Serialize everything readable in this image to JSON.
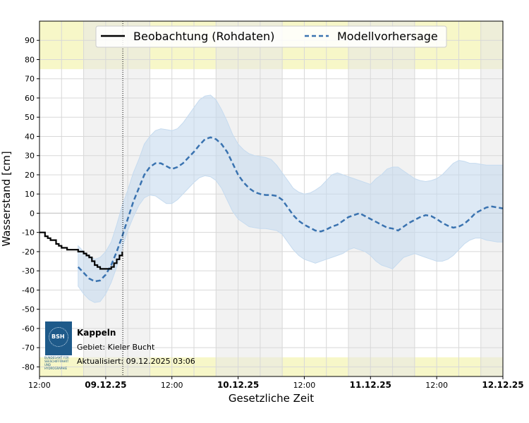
{
  "chart_data": {
    "type": "line",
    "xlabel": "Gesetzliche Zeit",
    "ylabel": "Wasserstand [cm]",
    "x_unit": "hours since 08.12.2025 12:00",
    "xlim": [
      0,
      84
    ],
    "ylim": [
      -85,
      100
    ],
    "y_ticks": [
      90,
      80,
      70,
      60,
      50,
      40,
      30,
      20,
      10,
      0,
      -10,
      -20,
      -30,
      -40,
      -50,
      -60,
      -70,
      -80
    ],
    "x_ticks": [
      {
        "x": 0,
        "label": "12:00",
        "bold": false
      },
      {
        "x": 12,
        "label": "09.12.25",
        "bold": true
      },
      {
        "x": 24,
        "label": "12:00",
        "bold": false
      },
      {
        "x": 36,
        "label": "10.12.25",
        "bold": true
      },
      {
        "x": 48,
        "label": "12:00",
        "bold": false
      },
      {
        "x": 60,
        "label": "11.12.25",
        "bold": true
      },
      {
        "x": 72,
        "label": "12:00",
        "bold": false
      },
      {
        "x": 84,
        "label": "12.12.25",
        "bold": true
      }
    ],
    "now_x": 15.1,
    "night_bands": [
      [
        8,
        20
      ],
      [
        32,
        44
      ],
      [
        56,
        68
      ],
      [
        80,
        84
      ]
    ],
    "warning_bands": [
      [
        75,
        100
      ],
      [
        -85,
        -75
      ]
    ],
    "legend": [
      {
        "label": "Beobachtung (Rohdaten)",
        "style": "solid",
        "color": "#000000"
      },
      {
        "label": "Modellvorhersage",
        "style": "dashed",
        "color": "#3a73b0"
      }
    ],
    "series": [
      {
        "name": "Beobachtung (Rohdaten)",
        "x": [
          0,
          0.5,
          1,
          1.5,
          2,
          2.5,
          3,
          3.5,
          4,
          4.5,
          5,
          5.5,
          6,
          6.5,
          7,
          7.5,
          8,
          8.5,
          9,
          9.5,
          10,
          10.5,
          11,
          11.5,
          12,
          12.5,
          13,
          13.5,
          14,
          14.5,
          15
        ],
        "values": [
          -10,
          -10,
          -12,
          -13,
          -14,
          -14,
          -16,
          -17,
          -18,
          -18,
          -19,
          -19,
          -19,
          -19,
          -20,
          -20,
          -21,
          -22,
          -23,
          -25,
          -27,
          -28,
          -29,
          -29,
          -29,
          -29,
          -28,
          -26,
          -24,
          -22,
          -20
        ]
      },
      {
        "name": "Modellvorhersage",
        "x": [
          7,
          8,
          9,
          10,
          11,
          12,
          13,
          14,
          15,
          16,
          17,
          18,
          19,
          20,
          21,
          22,
          23,
          24,
          25,
          26,
          27,
          28,
          29,
          30,
          31,
          32,
          33,
          34,
          35,
          36,
          37,
          38,
          39,
          40,
          41,
          42,
          43,
          44,
          45,
          46,
          47,
          48,
          49,
          50,
          51,
          52,
          53,
          54,
          55,
          56,
          57,
          58,
          59,
          60,
          61,
          62,
          63,
          64,
          65,
          66,
          67,
          68,
          69,
          70,
          71,
          72,
          73,
          74,
          75,
          76,
          77,
          78,
          79,
          80,
          81,
          82,
          83,
          84
        ],
        "values": [
          -28,
          -31,
          -34,
          -35.5,
          -35,
          -32,
          -27,
          -20,
          -12,
          -3,
          6,
          13,
          20,
          24,
          26,
          26,
          24.5,
          23,
          24,
          26,
          29,
          32,
          35.5,
          38.5,
          39.5,
          38.5,
          36,
          32,
          26,
          20,
          16,
          13,
          11,
          10,
          9.5,
          9.5,
          9,
          7,
          3,
          -1,
          -4,
          -6,
          -7.5,
          -9,
          -9.5,
          -8.5,
          -7,
          -6,
          -4,
          -2,
          -1,
          0,
          -1.5,
          -3,
          -4.5,
          -6,
          -7.5,
          -8,
          -9,
          -7,
          -5,
          -3.5,
          -2,
          -1,
          -1.5,
          -3,
          -5,
          -6.5,
          -7.5,
          -7,
          -5.5,
          -3,
          0,
          1.5,
          3,
          3.5,
          3,
          2.5
        ]
      },
      {
        "name": "Unsicherheitsbereich (oben)",
        "x": [
          7,
          8,
          9,
          10,
          11,
          12,
          13,
          14,
          15,
          16,
          17,
          18,
          19,
          20,
          21,
          22,
          23,
          24,
          25,
          26,
          27,
          28,
          29,
          30,
          31,
          32,
          33,
          34,
          35,
          36,
          37,
          38,
          39,
          40,
          41,
          42,
          43,
          44,
          45,
          46,
          47,
          48,
          49,
          50,
          51,
          52,
          53,
          54,
          55,
          56,
          57,
          58,
          59,
          60,
          61,
          62,
          63,
          64,
          65,
          66,
          67,
          68,
          69,
          70,
          71,
          72,
          73,
          74,
          75,
          76,
          77,
          78,
          79,
          80,
          81,
          82,
          83,
          84
        ],
        "values": [
          -17,
          -20,
          -22,
          -24,
          -23,
          -20,
          -15,
          -6,
          4,
          12,
          21,
          28,
          36,
          40,
          43,
          44,
          43.5,
          43,
          44,
          47,
          51,
          55,
          59,
          61,
          61.5,
          59,
          54,
          48,
          41,
          36,
          33,
          31,
          30,
          29.5,
          29,
          28,
          25,
          21,
          17,
          13,
          11,
          10,
          10.5,
          12,
          14,
          17,
          20,
          21,
          20,
          19,
          18,
          17,
          16,
          15,
          18,
          20,
          23,
          24,
          24,
          22,
          20,
          18,
          17,
          16.5,
          17,
          18,
          20,
          23,
          26,
          27.5,
          27,
          26,
          26,
          25.5,
          25,
          25,
          25,
          25
        ]
      },
      {
        "name": "Unsicherheitsbereich (unten)",
        "x": [
          7,
          8,
          9,
          10,
          11,
          12,
          13,
          14,
          15,
          16,
          17,
          18,
          19,
          20,
          21,
          22,
          23,
          24,
          25,
          26,
          27,
          28,
          29,
          30,
          31,
          32,
          33,
          34,
          35,
          36,
          37,
          38,
          39,
          40,
          41,
          42,
          43,
          44,
          45,
          46,
          47,
          48,
          49,
          50,
          51,
          52,
          53,
          54,
          55,
          56,
          57,
          58,
          59,
          60,
          61,
          62,
          63,
          64,
          65,
          66,
          67,
          68,
          69,
          70,
          71,
          72,
          73,
          74,
          75,
          76,
          77,
          78,
          79,
          80,
          81,
          82,
          83,
          84
        ],
        "values": [
          -38,
          -42,
          -45,
          -46.5,
          -46,
          -42,
          -36,
          -28,
          -18,
          -9,
          -2,
          4,
          8,
          9.5,
          9,
          7,
          5,
          5,
          7,
          10,
          13,
          16,
          18.5,
          19.5,
          19,
          17,
          13,
          7,
          1,
          -3,
          -5,
          -7,
          -7.5,
          -8,
          -8,
          -8.5,
          -9,
          -11,
          -15,
          -19,
          -22,
          -24,
          -25,
          -26,
          -25,
          -24,
          -23,
          -22,
          -21,
          -19,
          -18,
          -19,
          -20,
          -22,
          -25,
          -27,
          -28,
          -29,
          -26,
          -23,
          -22,
          -21,
          -22,
          -23,
          -24,
          -25,
          -25,
          -24,
          -22,
          -19,
          -16,
          -14,
          -13,
          -13,
          -14,
          -14.5,
          -15,
          -15
        ]
      }
    ]
  },
  "info": {
    "logo_text": "BSH",
    "logo_subtext": "BUNDESAMT FÜR SEESCHIFFFAHRT UND HYDROGRAPHIE",
    "station": "Kappeln",
    "region": "Gebiet: Kieler Bucht",
    "updated": "Aktualisiert: 09.12.2025 03:06"
  },
  "colors": {
    "observation": "#000000",
    "forecast": "#3a73b0",
    "band": "#c6dbef",
    "night": "#e8e8e8",
    "warning": "#f7f7c8",
    "grid": "#d8d8d8"
  }
}
